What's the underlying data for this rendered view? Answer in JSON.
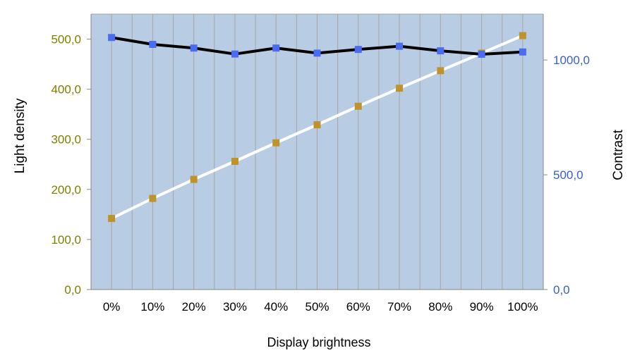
{
  "chart_data": {
    "type": "line",
    "xlabel": "Display brightness",
    "ylabel_left": "Light density",
    "ylabel_right": "Contrast",
    "categories": [
      "0%",
      "10%",
      "20%",
      "30%",
      "40%",
      "50%",
      "60%",
      "70%",
      "80%",
      "90%",
      "100%"
    ],
    "ylim_left": [
      0,
      550
    ],
    "ylim_right": [
      0,
      1200
    ],
    "yticks_left": [
      "0,0",
      "100,0",
      "200,0",
      "300,0",
      "400,0",
      "500,0"
    ],
    "yticks_left_values": [
      0,
      100,
      200,
      300,
      400,
      500
    ],
    "yticks_right": [
      "0,0",
      "500,0",
      "1000,0"
    ],
    "yticks_right_values": [
      0,
      500,
      1000
    ],
    "grid": true,
    "series": [
      {
        "axis": "left",
        "values": [
          142,
          182,
          220,
          256,
          293,
          329,
          366,
          402,
          437,
          472,
          507
        ],
        "line_color": "#ffffff",
        "marker_color": "#c0922a"
      },
      {
        "axis": "right",
        "values": [
          1098,
          1068,
          1052,
          1026,
          1052,
          1030,
          1046,
          1060,
          1040,
          1025,
          1035
        ],
        "line_color": "#000000",
        "marker_color": "#4a6cf0"
      }
    ],
    "colors": {
      "plot_background": "#b8cce4",
      "grid": "#a6a6a6",
      "left_axis_text": "#7f7f00",
      "right_axis_text": "#3a5fcd"
    }
  }
}
